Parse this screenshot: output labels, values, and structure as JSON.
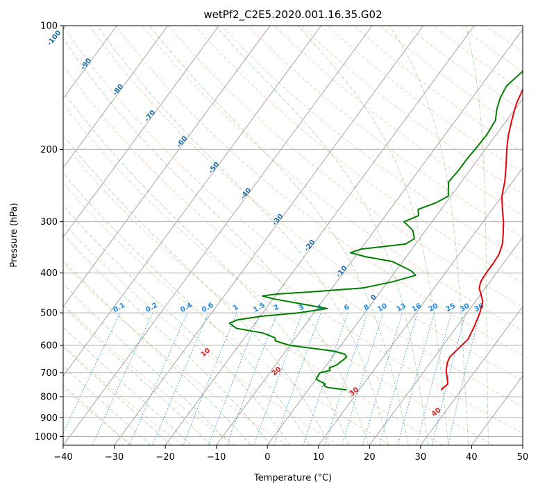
{
  "chart_data": {
    "type": "line",
    "title": "wetPf2_C2E5.2020.001.16.35.G02",
    "xlabel": "Temperature (°C)",
    "ylabel": "Pressure (hPa)",
    "xlim": [
      -40,
      50
    ],
    "ylim": [
      1050,
      100
    ],
    "y_scale": "log",
    "x_ticks": [
      -40,
      -30,
      -20,
      -10,
      0,
      10,
      20,
      30,
      40,
      50
    ],
    "y_ticks": [
      100,
      200,
      300,
      400,
      500,
      600,
      700,
      800,
      900,
      1000
    ],
    "grid": true,
    "colors": {
      "temperature": "#e8000b",
      "dewpoint": "#008000",
      "dry_adiabat": "#f4a582",
      "moist_adiabat": "#2ca02c",
      "mixing_ratio": "#1e88e5",
      "isotherm": "#808080",
      "isotherm_label": "#1f6fa8",
      "dry_adiabat_label": "#d62728"
    },
    "series": [
      {
        "key": "temperature",
        "p": [
          770,
          745,
          720,
          690,
          660,
          640,
          620,
          580,
          540,
          500,
          470,
          450,
          435,
          420,
          400,
          380,
          360,
          340,
          320,
          300,
          280,
          260,
          240,
          220,
          200,
          185,
          170,
          155,
          140,
          130,
          120,
          110,
          105,
          100
        ],
        "t": [
          26.0,
          26.5,
          25.5,
          24.2,
          23.3,
          23.0,
          23.3,
          24.0,
          23.4,
          22.5,
          21.5,
          20.0,
          18.8,
          18.2,
          18.0,
          18.0,
          17.8,
          17.0,
          15.6,
          14.0,
          12.0,
          10.0,
          8.5,
          6.5,
          4.2,
          2.5,
          1.0,
          -0.5,
          -1.5,
          -2.0,
          -2.3,
          -2.2,
          -1.8,
          -1.2
        ]
      },
      {
        "key": "dewpoint",
        "p": [
          770,
          765,
          760,
          755,
          750,
          745,
          725,
          700,
          690,
          680,
          670,
          660,
          650,
          640,
          630,
          620,
          600,
          585,
          575,
          560,
          545,
          530,
          520,
          510,
          500,
          488,
          475,
          462,
          455,
          450,
          445,
          435,
          420,
          405,
          395,
          385,
          375,
          365,
          357,
          350,
          345,
          340,
          330,
          315,
          300,
          290,
          280,
          270,
          260,
          250,
          240,
          225,
          210,
          200,
          185,
          170,
          160,
          150,
          140,
          130,
          120,
          110,
          100
        ],
        "t": [
          7.5,
          5.5,
          3.5,
          2.8,
          2.4,
          2.5,
          0.0,
          -0.2,
          1.5,
          1.0,
          2.0,
          2.2,
          2.6,
          2.8,
          2.0,
          -0.5,
          -10.0,
          -13.5,
          -14.0,
          -17.0,
          -23.0,
          -25.0,
          -24.0,
          -20.0,
          -13.0,
          -8.0,
          -14.0,
          -20.0,
          -22.5,
          -20.0,
          -14.0,
          -4.0,
          1.0,
          4.5,
          3.0,
          0.5,
          -2.0,
          -8.0,
          -11.5,
          -10.0,
          -6.0,
          -2.0,
          -1.0,
          -2.5,
          -5.5,
          -3.5,
          -4.5,
          -2.0,
          -0.5,
          -1.5,
          -2.5,
          -2.2,
          -2.2,
          -2.0,
          -1.8,
          -2.2,
          -3.5,
          -4.5,
          -5.0,
          -4.0,
          -3.5,
          -2.8,
          -1.2
        ]
      }
    ],
    "isotherm_labels": [
      "-100",
      "-90",
      "-80",
      "-70",
      "-60",
      "-50",
      "-40",
      "-30",
      "-20",
      "-10",
      "0"
    ],
    "mixing_ratio_labels": [
      "0.1",
      "0.2",
      "0.4",
      "0.6",
      "1",
      "1.5",
      "2",
      "3",
      "4",
      "6",
      "8",
      "10",
      "13",
      "16",
      "20",
      "25",
      "30",
      "36"
    ],
    "dry_adiabat_labels": [
      "10",
      "20",
      "30",
      "40"
    ]
  }
}
